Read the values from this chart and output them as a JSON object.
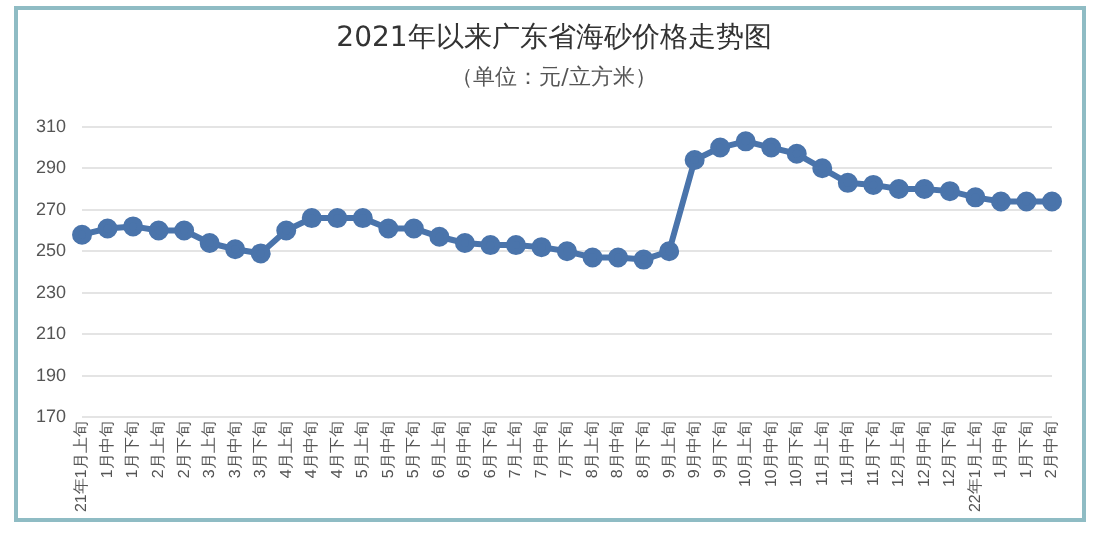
{
  "chart_data": {
    "type": "line",
    "title": "2021年以来广东省海砂价格走势图",
    "subtitle": "（单位：元/立方米）",
    "categories": [
      "21年1月上旬",
      "1月中旬",
      "1月下旬",
      "2月上旬",
      "2月下旬",
      "3月上旬",
      "3月中旬",
      "3月下旬",
      "4月上旬",
      "4月中旬",
      "4月下旬",
      "5月上旬",
      "5月中旬",
      "5月下旬",
      "6月上旬",
      "6月中旬",
      "6月下旬",
      "7月上旬",
      "7月中旬",
      "7月下旬",
      "8月上旬",
      "8月中旬",
      "8月下旬",
      "9月上旬",
      "9月中旬",
      "9月下旬",
      "10月上旬",
      "10月中旬",
      "10月下旬",
      "11月上旬",
      "11月中旬",
      "11月下旬",
      "12月上旬",
      "12月中旬",
      "12月下旬",
      "22年1月上旬",
      "1月中旬",
      "1月下旬",
      "2月中旬"
    ],
    "series": [
      {
        "color": "#4a74ab",
        "values": [
          258,
          261,
          262,
          260,
          260,
          254,
          251,
          249,
          260,
          266,
          266,
          266,
          261,
          261,
          257,
          254,
          253,
          253,
          252,
          250,
          247,
          247,
          246,
          250,
          294,
          300,
          303,
          300,
          297,
          290,
          283,
          282,
          280,
          280,
          279,
          276,
          274,
          274,
          274
        ]
      }
    ],
    "ylim": [
      170,
      310
    ],
    "yticks": [
      170,
      190,
      210,
      230,
      250,
      270,
      290,
      310
    ],
    "grid": "y",
    "legend": false,
    "marker": "circle",
    "line_style": "solid"
  }
}
